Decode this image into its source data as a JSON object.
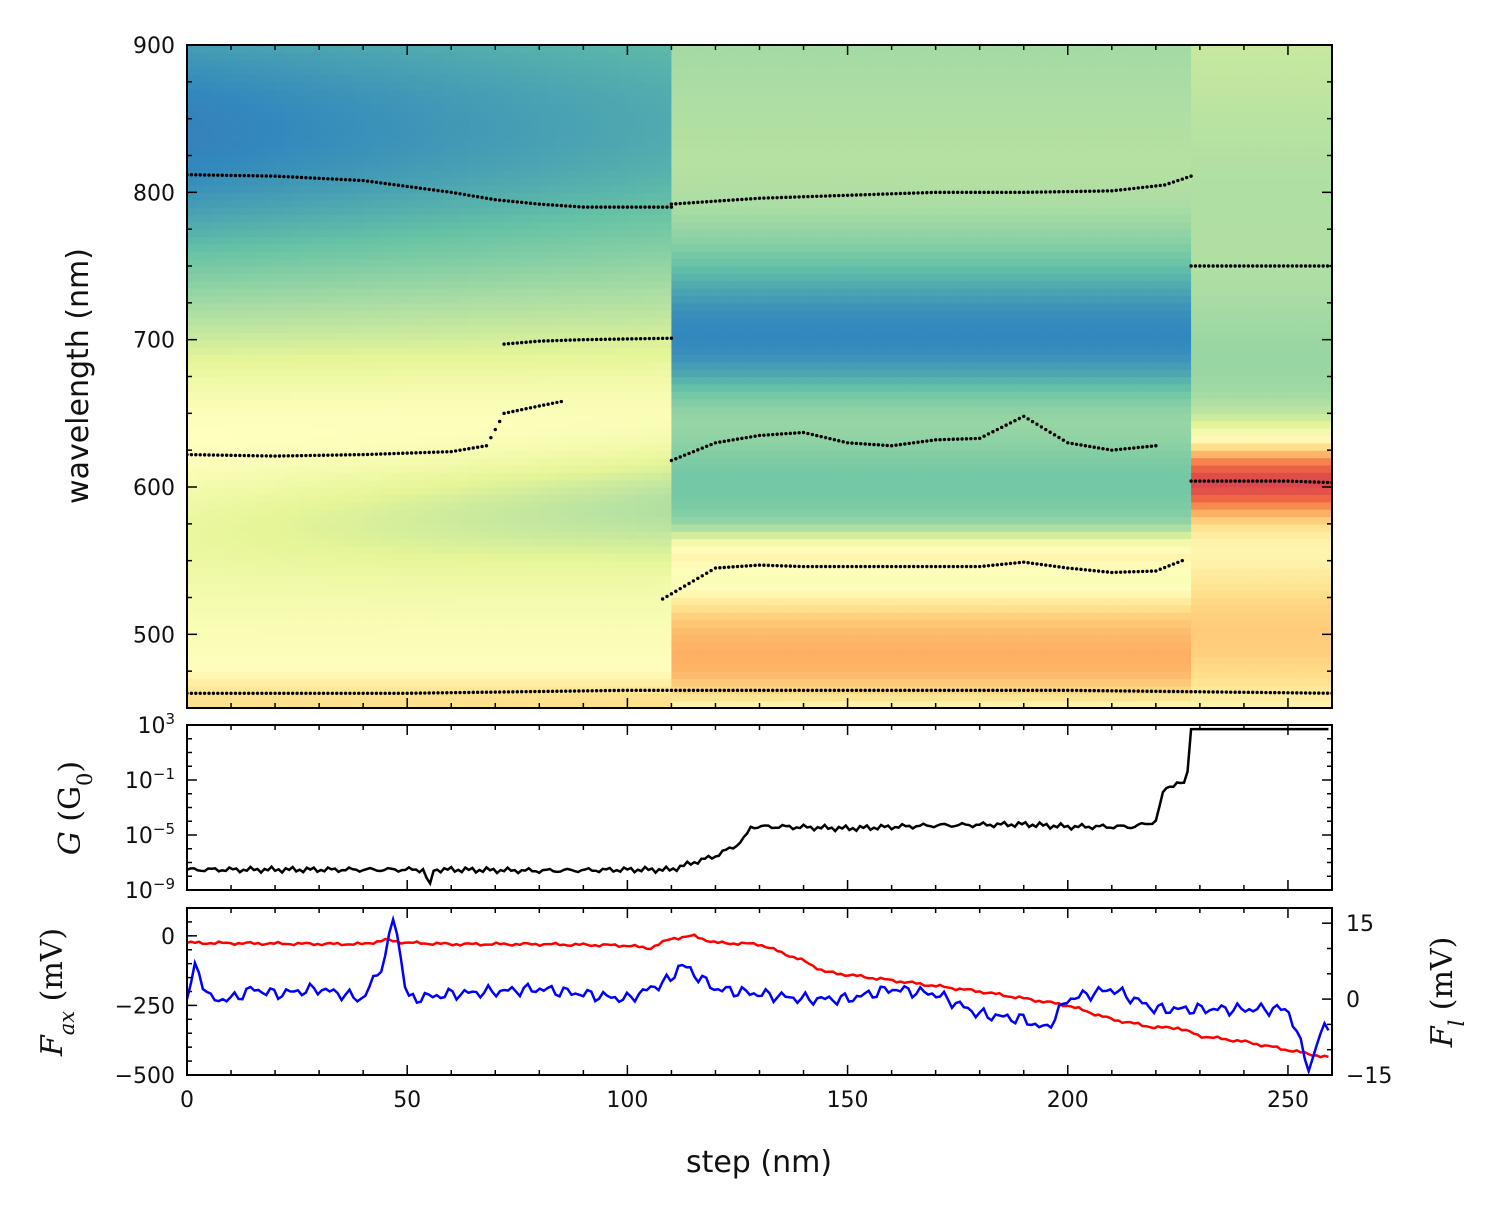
{
  "chart_data": [
    {
      "type": "heatmap",
      "xlim": [
        0,
        260
      ],
      "ylim": [
        450,
        900
      ],
      "yticks": [
        500,
        600,
        700,
        800,
        900
      ],
      "ylabel": "wavelength (nm)",
      "colormap": "Spectral_r",
      "colorbar": false,
      "description_of_bands": [
        {
          "x_range": [
            0,
            110
          ],
          "center": 585,
          "width": 40,
          "level": "low"
        },
        {
          "x_range": [
            110,
            228
          ],
          "center": 705,
          "width": 70,
          "level": "low"
        },
        {
          "x_range": [
            228,
            260
          ],
          "center": 605,
          "width": 30,
          "level": "high"
        }
      ],
      "peak_tracks": [
        {
          "x": [
            0,
            20,
            40,
            60,
            70,
            80,
            90,
            110
          ],
          "y": [
            812,
            811,
            808,
            800,
            795,
            792,
            790,
            790
          ]
        },
        {
          "x": [
            0,
            20,
            40,
            60,
            68,
            72,
            80,
            85
          ],
          "y": [
            622,
            621,
            622,
            624,
            628,
            650,
            655,
            658
          ]
        },
        {
          "x": [
            72,
            80,
            90,
            110
          ],
          "y": [
            697,
            699,
            700,
            701
          ]
        },
        {
          "x": [
            110,
            130,
            150,
            170,
            190,
            210,
            222,
            228
          ],
          "y": [
            792,
            796,
            798,
            800,
            800,
            801,
            805,
            811
          ]
        },
        {
          "x": [
            110,
            120,
            130,
            140,
            150,
            160,
            170,
            180,
            190,
            200,
            210,
            220
          ],
          "y": [
            618,
            630,
            635,
            637,
            630,
            628,
            632,
            633,
            648,
            630,
            625,
            628
          ]
        },
        {
          "x": [
            108,
            120,
            130,
            140,
            150,
            160,
            170,
            180,
            190,
            200,
            210,
            220,
            226
          ],
          "y": [
            524,
            545,
            547,
            546,
            546,
            546,
            546,
            546,
            549,
            545,
            542,
            543,
            550
          ]
        },
        {
          "x": [
            228,
            240,
            250,
            260
          ],
          "y": [
            750,
            750,
            750,
            750
          ]
        },
        {
          "x": [
            228,
            240,
            250,
            260
          ],
          "y": [
            604,
            604,
            604,
            603
          ]
        },
        {
          "x": [
            0,
            50,
            100,
            150,
            200,
            260
          ],
          "y": [
            460,
            460,
            462,
            462,
            462,
            460
          ]
        }
      ]
    },
    {
      "type": "line",
      "xlim": [
        0,
        260
      ],
      "yscale": "log",
      "ylim": [
        1e-09,
        1000
      ],
      "yticks": [
        "10^{-9}",
        "10^{-5}",
        "10^{-1}",
        "10^{3}"
      ],
      "ylabel": "G (G_0)",
      "series": [
        {
          "color": "#000000",
          "x": [
            0,
            20,
            40,
            50,
            54,
            55,
            56,
            60,
            80,
            100,
            110,
            115,
            120,
            125,
            127,
            128,
            135,
            150,
            170,
            190,
            200,
            215,
            220,
            222,
            226,
            227,
            228,
            260
          ],
          "y": [
            3e-08,
            3e-08,
            3e-08,
            3e-08,
            3e-08,
            1e-09,
            3e-08,
            3e-08,
            2.5e-08,
            3e-08,
            3e-08,
            1e-07,
            3e-07,
            2e-06,
            8e-06,
            4e-05,
            4e-05,
            3e-05,
            5e-05,
            6e-05,
            4e-05,
            4e-05,
            0.0001,
            0.03,
            0.06,
            0.07,
            500,
            500
          ]
        }
      ]
    },
    {
      "type": "line",
      "xlim": [
        0,
        260
      ],
      "ylim": [
        -500,
        100
      ],
      "yticks": [
        -500,
        -250,
        0
      ],
      "ylabel": "F_ax (mV)",
      "y2lim": [
        -15,
        18
      ],
      "y2ticks": [
        -15,
        0,
        15
      ],
      "y2label": "F_l (mV)",
      "series": [
        {
          "color": "#ff0000",
          "axis": "left",
          "x": [
            0,
            20,
            40,
            45,
            50,
            60,
            80,
            100,
            105,
            110,
            115,
            120,
            130,
            140,
            145,
            150,
            160,
            180,
            200,
            210,
            220,
            225,
            230,
            240,
            250,
            260
          ],
          "y": [
            -25,
            -28,
            -30,
            -15,
            -25,
            -30,
            -30,
            -35,
            -45,
            -10,
            0,
            -25,
            -30,
            -90,
            -130,
            -140,
            -160,
            -200,
            -250,
            -300,
            -330,
            -330,
            -360,
            -380,
            -410,
            -440
          ]
        },
        {
          "color": "#0000ff",
          "axis": "right",
          "x": [
            0,
            2,
            5,
            10,
            15,
            20,
            30,
            40,
            45,
            47,
            50,
            60,
            80,
            100,
            110,
            112,
            120,
            140,
            150,
            160,
            170,
            180,
            190,
            195,
            200,
            210,
            220,
            230,
            240,
            250,
            255,
            258,
            260
          ],
          "y": [
            0,
            7,
            0,
            0,
            2,
            1,
            2,
            0,
            8,
            17,
            0,
            1,
            2,
            0,
            4,
            7,
            2,
            0,
            0,
            2,
            1,
            -3,
            -4,
            -6,
            0,
            2,
            -2,
            -2,
            -2,
            -2,
            -14,
            -5,
            -6
          ]
        }
      ],
      "xticks": [
        0,
        50,
        100,
        150,
        200,
        250
      ],
      "xlabel": "step (nm)"
    }
  ]
}
